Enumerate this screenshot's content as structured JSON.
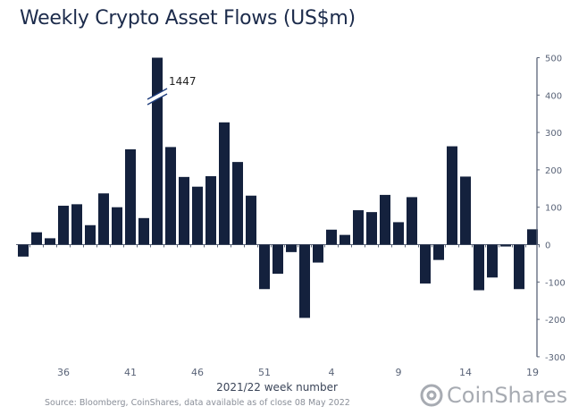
{
  "title": "Weekly Crypto Asset Flows (US$m)",
  "source": "Source: Bloomberg, CoinShares, data available as of close 08 May 2022",
  "logo_text": "CoinShares",
  "chart_data": {
    "type": "bar",
    "title": "Weekly Crypto Asset Flows (US$m)",
    "xlabel": "2021/22 week number",
    "ylabel": "",
    "ylim": [
      -300,
      500
    ],
    "yticks": [
      500,
      400,
      300,
      200,
      100,
      0,
      -100,
      -200,
      -300
    ],
    "y_axis_side": "right",
    "grid": false,
    "bar_color": "#14213d",
    "categories": [
      33,
      34,
      35,
      36,
      37,
      38,
      39,
      40,
      41,
      42,
      43,
      44,
      45,
      46,
      47,
      48,
      49,
      50,
      51,
      52,
      1,
      2,
      3,
      4,
      5,
      6,
      7,
      8,
      9,
      10,
      11,
      12,
      13,
      14,
      15,
      16,
      17,
      18,
      19
    ],
    "x_tick_labels": [
      "36",
      "41",
      "46",
      "51",
      "4",
      "9",
      "14",
      "19"
    ],
    "values": [
      -32,
      33,
      17,
      104,
      108,
      52,
      137,
      100,
      255,
      71,
      1447,
      261,
      181,
      155,
      183,
      327,
      221,
      131,
      -119,
      -78,
      -20,
      -196,
      -48,
      40,
      26,
      92,
      87,
      133,
      60,
      127,
      -104,
      -41,
      263,
      182,
      -122,
      -88,
      -5,
      -119,
      41
    ],
    "annotations": [
      {
        "category": 43,
        "text": "1447",
        "note": "axis break"
      }
    ]
  }
}
